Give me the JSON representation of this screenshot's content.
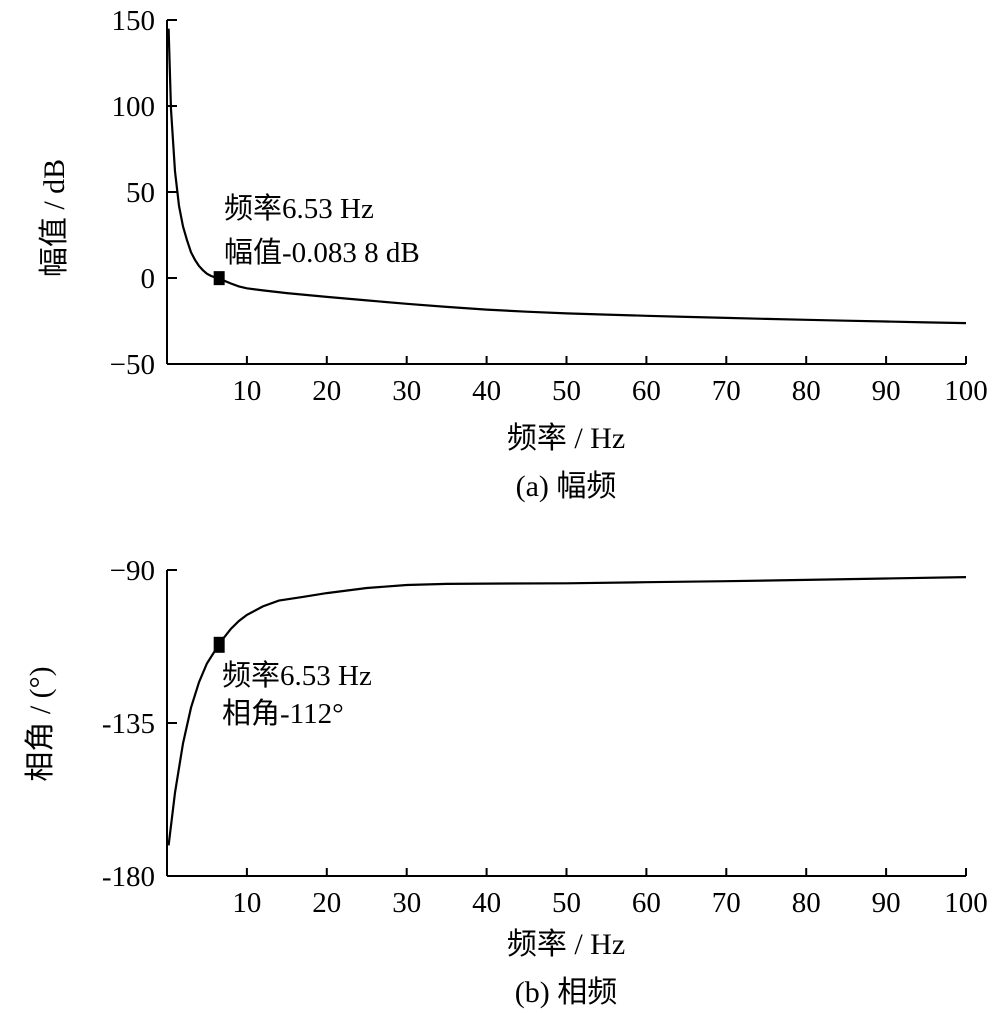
{
  "chart_data": [
    {
      "type": "line",
      "caption": "(a) 幅频",
      "xlabel": "频率 / Hz",
      "ylabel": "幅值 / dB",
      "xlim": [
        0,
        100
      ],
      "ylim": [
        -50,
        150
      ],
      "xticks": [
        10,
        20,
        30,
        40,
        50,
        60,
        70,
        80,
        90,
        100
      ],
      "yticks": [
        150,
        100,
        50,
        0,
        -50
      ],
      "ytick_labels": [
        "150",
        "100",
        "50",
        "0",
        "−50"
      ],
      "series": [
        {
          "color": "#000000",
          "points": [
            [
              0.2,
              145
            ],
            [
              0.5,
              98
            ],
            [
              1,
              62
            ],
            [
              1.5,
              42
            ],
            [
              2,
              30
            ],
            [
              2.5,
              22
            ],
            [
              3,
              15
            ],
            [
              3.5,
              10.5
            ],
            [
              4,
              7
            ],
            [
              4.5,
              4.5
            ],
            [
              5,
              2.5
            ],
            [
              5.5,
              1.2
            ],
            [
              6,
              0.4
            ],
            [
              6.53,
              -0.0838
            ],
            [
              7,
              -1.3
            ],
            [
              8,
              -3.2
            ],
            [
              9,
              -4.9
            ],
            [
              10,
              -6.0
            ],
            [
              12,
              -7.2
            ],
            [
              15,
              -8.8
            ],
            [
              20,
              -11.0
            ],
            [
              25,
              -13.0
            ],
            [
              30,
              -15.0
            ],
            [
              35,
              -16.8
            ],
            [
              40,
              -18.4
            ],
            [
              45,
              -19.6
            ],
            [
              50,
              -20.6
            ],
            [
              55,
              -21.3
            ],
            [
              60,
              -22.0
            ],
            [
              65,
              -22.6
            ],
            [
              70,
              -23.2
            ],
            [
              75,
              -23.8
            ],
            [
              80,
              -24.3
            ],
            [
              85,
              -24.8
            ],
            [
              90,
              -25.3
            ],
            [
              95,
              -25.8
            ],
            [
              100,
              -26.2
            ]
          ]
        }
      ],
      "marker": {
        "x": 6.53,
        "y": -0.0838
      },
      "annotations": [
        "频率6.53 Hz",
        "幅值-0.083 8 dB"
      ]
    },
    {
      "type": "line",
      "caption": "(b) 相频",
      "xlabel": "频率 / Hz",
      "ylabel": "相角 / (°)",
      "xlim": [
        0,
        100
      ],
      "ylim": [
        -180,
        -90
      ],
      "xticks": [
        10,
        20,
        30,
        40,
        50,
        60,
        70,
        80,
        90,
        100
      ],
      "yticks": [
        -90,
        -135,
        -180
      ],
      "ytick_labels": [
        "−90",
        "-135",
        "-180"
      ],
      "series": [
        {
          "color": "#000000",
          "points": [
            [
              0.2,
              -171
            ],
            [
              1,
              -155.5
            ],
            [
              2,
              -141
            ],
            [
              3,
              -130.5
            ],
            [
              4,
              -123
            ],
            [
              5,
              -117.5
            ],
            [
              6,
              -113.8
            ],
            [
              6.53,
              -112
            ],
            [
              7,
              -110.3
            ],
            [
              8,
              -107.3
            ],
            [
              9,
              -105.0
            ],
            [
              10,
              -103.2
            ],
            [
              12,
              -100.7
            ],
            [
              14,
              -99.0
            ],
            [
              17,
              -97.9
            ],
            [
              20,
              -96.8
            ],
            [
              25,
              -95.3
            ],
            [
              30,
              -94.4
            ],
            [
              35,
              -94.1
            ],
            [
              40,
              -94.0
            ],
            [
              50,
              -93.9
            ],
            [
              60,
              -93.6
            ],
            [
              70,
              -93.3
            ],
            [
              80,
              -92.9
            ],
            [
              90,
              -92.5
            ],
            [
              100,
              -92.1
            ]
          ]
        }
      ],
      "marker": {
        "x": 6.53,
        "y": -112
      },
      "annotations": [
        "频率6.53 Hz",
        "相角-112°"
      ]
    }
  ]
}
